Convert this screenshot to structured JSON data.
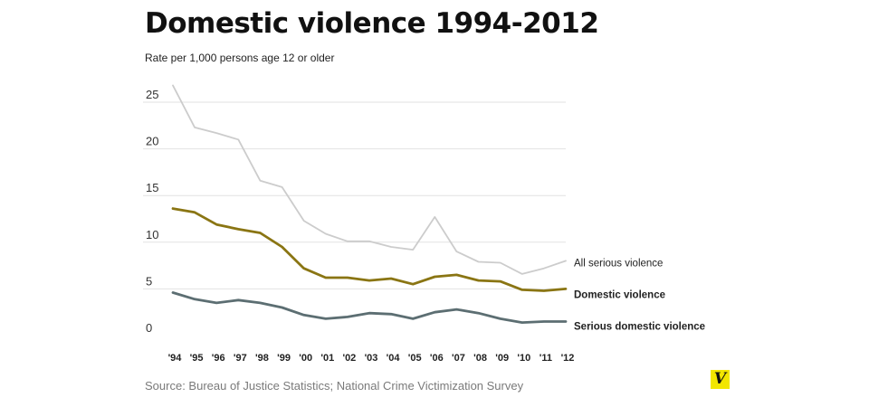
{
  "header": {
    "title": "Domestic violence 1994-2012",
    "subtitle": "Rate per 1,000 persons age 12 or older"
  },
  "footer": {
    "source": "Source: Bureau of Justice Statistics; National Crime Victimization Survey",
    "logo_text": "V",
    "logo_color": "#f2e600"
  },
  "chart_data": {
    "type": "line",
    "title": "Domestic violence 1994-2012",
    "subtitle": "Rate per 1,000 persons age 12 or older",
    "x": [
      "'94",
      "'95",
      "'96",
      "'97",
      "'98",
      "'99",
      "'00",
      "'01",
      "'02",
      "'03",
      "'04",
      "'05",
      "'06",
      "'07",
      "'08",
      "'09",
      "'10",
      "'11",
      "'12"
    ],
    "ylim": [
      0,
      27
    ],
    "yticks": [
      0,
      5,
      10,
      15,
      20,
      25
    ],
    "grid": true,
    "legend": "direct labels at right end of lines",
    "series": [
      {
        "name": "All serious violence",
        "color": "#cccccc",
        "label_weight": "normal",
        "values": [
          26.8,
          22.3,
          21.7,
          21.0,
          16.6,
          15.9,
          12.3,
          10.9,
          10.1,
          10.1,
          9.5,
          9.2,
          12.7,
          9.0,
          7.9,
          7.8,
          6.6,
          7.2,
          8.0
        ]
      },
      {
        "name": "Domestic violence",
        "color": "#8a7513",
        "label_weight": "bold",
        "values": [
          13.6,
          13.2,
          11.9,
          11.4,
          11.0,
          9.5,
          7.2,
          6.2,
          6.2,
          5.9,
          6.1,
          5.5,
          6.3,
          6.5,
          5.9,
          5.8,
          4.9,
          4.8,
          5.0
        ]
      },
      {
        "name": "Serious domestic violence",
        "color": "#5c6e72",
        "label_weight": "bold",
        "values": [
          4.6,
          3.9,
          3.5,
          3.8,
          3.5,
          3.0,
          2.2,
          1.8,
          2.0,
          2.4,
          2.3,
          1.8,
          2.5,
          2.8,
          2.4,
          1.8,
          1.4,
          1.5,
          1.5
        ]
      }
    ]
  }
}
